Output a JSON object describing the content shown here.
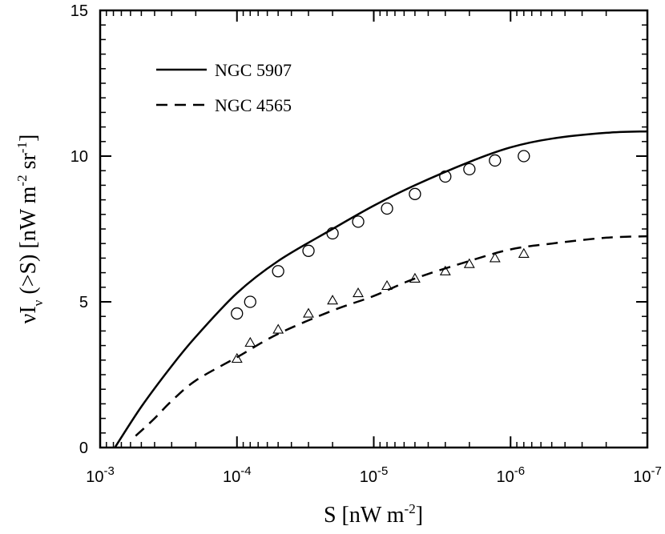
{
  "chart_data": {
    "type": "line",
    "xscale": "log",
    "xdirection": "decreasing",
    "xlim": [
      0.001,
      1e-07
    ],
    "ylim": [
      0,
      15
    ],
    "xlabel": {
      "main": "S [nW m",
      "sup": "-2",
      "close": "]"
    },
    "ylabel": {
      "nu": "ν",
      "I": "I",
      "sub": "ν",
      "mid": " (>S) [nW m",
      "sup1": "-2",
      "mid2": " sr",
      "sup2": "-1",
      "close": "]"
    },
    "x_tick_labels": [
      {
        "base": "10",
        "exp": "-3",
        "value": 0.001
      },
      {
        "base": "10",
        "exp": "-4",
        "value": 0.0001
      },
      {
        "base": "10",
        "exp": "-5",
        "value": 1e-05
      },
      {
        "base": "10",
        "exp": "-6",
        "value": 1e-06
      },
      {
        "base": "10",
        "exp": "-7",
        "value": 1e-07
      }
    ],
    "y_ticks": [
      0,
      5,
      10,
      15
    ],
    "legend": {
      "position": "top-left"
    },
    "series": [
      {
        "name": "NGC 5907",
        "style": "solid",
        "x": [
          0.00078,
          0.0005,
          0.0003,
          0.0002,
          0.0001,
          5e-05,
          2e-05,
          1e-05,
          5e-06,
          2e-06,
          1e-06,
          5e-07,
          2e-07,
          1e-07
        ],
        "y": [
          0,
          1.4,
          2.8,
          3.8,
          5.3,
          6.4,
          7.5,
          8.3,
          9.0,
          9.8,
          10.3,
          10.6,
          10.8,
          10.85
        ]
      },
      {
        "name": "NGC 4565",
        "style": "dashed",
        "x": [
          0.00055,
          0.0004,
          0.0003,
          0.0002,
          0.0001,
          5e-05,
          2e-05,
          1e-05,
          5e-06,
          2e-06,
          1e-06,
          5e-07,
          2e-07,
          1e-07
        ],
        "y": [
          0.4,
          1.0,
          1.6,
          2.3,
          3.1,
          3.9,
          4.7,
          5.2,
          5.8,
          6.4,
          6.8,
          7.0,
          7.2,
          7.25
        ]
      }
    ],
    "markers": [
      {
        "name": "NGC 5907 data",
        "symbol": "circle",
        "x": [
          0.0001,
          8e-05,
          5e-05,
          3e-05,
          2e-05,
          1.3e-05,
          8e-06,
          5e-06,
          3e-06,
          2e-06,
          1.3e-06,
          8e-07
        ],
        "y": [
          4.6,
          5.0,
          6.05,
          6.75,
          7.35,
          7.75,
          8.2,
          8.7,
          9.3,
          9.55,
          9.85,
          10.0
        ]
      },
      {
        "name": "NGC 4565 data",
        "symbol": "triangle",
        "x": [
          0.0001,
          8e-05,
          5e-05,
          3e-05,
          2e-05,
          1.3e-05,
          8e-06,
          5e-06,
          3e-06,
          2e-06,
          1.3e-06,
          8e-07
        ],
        "y": [
          3.05,
          3.6,
          4.05,
          4.6,
          5.05,
          5.3,
          5.55,
          5.8,
          6.05,
          6.3,
          6.5,
          6.65
        ]
      }
    ]
  }
}
